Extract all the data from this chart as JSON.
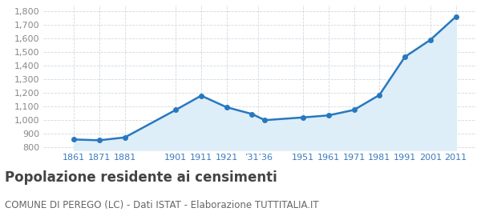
{
  "x_positions": [
    1861,
    1871,
    1881,
    1901,
    1911,
    1921,
    1931,
    1936,
    1951,
    1961,
    1971,
    1981,
    1991,
    2001,
    2011
  ],
  "population": [
    858,
    852,
    873,
    1075,
    1180,
    1095,
    1045,
    1000,
    1020,
    1035,
    1075,
    1185,
    1465,
    1590,
    1760
  ],
  "ylim": [
    780,
    1850
  ],
  "yticks": [
    800,
    900,
    1000,
    1100,
    1200,
    1300,
    1400,
    1500,
    1600,
    1700,
    1800
  ],
  "xlim_left": 1849,
  "xlim_right": 2019,
  "line_color": "#2878c0",
  "fill_color": "#ddeef8",
  "marker_color": "#2878c0",
  "grid_color": "#d0d8e0",
  "bg_color": "#ffffff",
  "title": "Popolazione residente ai censimenti",
  "subtitle": "COMUNE DI PEREGO (LC) - Dati ISTAT - Elaborazione TUTTITALIA.IT",
  "title_fontsize": 12,
  "subtitle_fontsize": 8.5,
  "tick_label_color": "#3a7abf",
  "ytick_color": "#888888",
  "tick_fontsize": 8,
  "xtick_positions": [
    1861,
    1871,
    1881,
    1901,
    1911,
    1921,
    1933.5,
    1951,
    1961,
    1971,
    1981,
    1991,
    2001,
    2011
  ],
  "xtick_labels": [
    "1861",
    "1871",
    "1881",
    "1901",
    "1911",
    "1921",
    "’31’36",
    "1951",
    "1961",
    "1971",
    "1981",
    "1991",
    "2001",
    "2011"
  ],
  "fill_baseline": 780
}
